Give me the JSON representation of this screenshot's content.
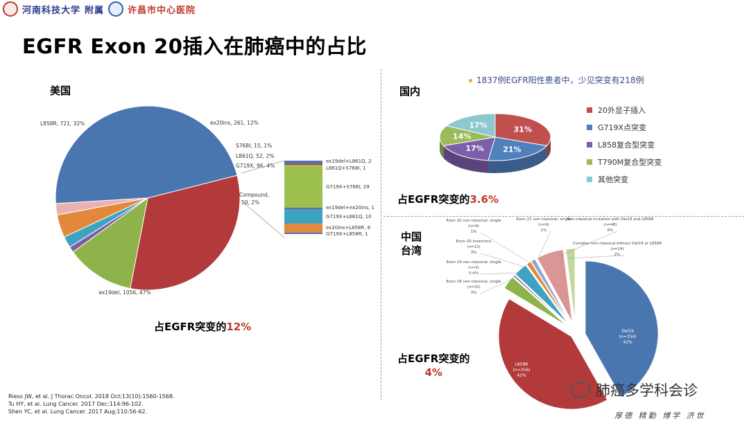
{
  "header": {
    "university": "河南科技大学",
    "affiliated": "附属",
    "hospital": "许昌市中心医院"
  },
  "title": "EGFR Exon 20插入在肺癌中的占比",
  "usa": {
    "label": "美国",
    "share_prefix": "占EGFR突变的",
    "share_value": "12%",
    "slices": [
      {
        "label": "ex19del, 1056, 47%",
        "value": 47,
        "color": "#4a76b0"
      },
      {
        "label": "L858R, 721, 32%",
        "value": 32,
        "color": "#b23a3a"
      },
      {
        "label": "ex20ins, 261, 12%",
        "value": 12,
        "color": "#8fb34b"
      },
      {
        "label": "S768I, 15, 1%",
        "value": 1,
        "color": "#7b5fa6"
      },
      {
        "label": "L861Q, 52, 2%",
        "value": 2,
        "color": "#3ea3c0"
      },
      {
        "label": "G719X, 96, 4%",
        "value": 4,
        "color": "#e3883a"
      },
      {
        "label": "Compound, 50, 2%",
        "value": 2,
        "color": "#e8b2b0"
      }
    ],
    "compound_breakdown": [
      {
        "label": "ex19del+L861Q, 2",
        "value": 2,
        "color": "#4a76b0"
      },
      {
        "label": "L861Q+S768I, 1",
        "value": 1,
        "color": "#b23a3a"
      },
      {
        "label": "G719X+S768I, 29",
        "value": 29,
        "color": "#9ec04f"
      },
      {
        "label": "ex19del+ex20ins, 1",
        "value": 1,
        "color": "#7b5fa6"
      },
      {
        "label": "G719X+L681Q, 10",
        "value": 10,
        "color": "#3ea3c0"
      },
      {
        "label": "ex20ins+L858R, 6",
        "value": 6,
        "color": "#e3883a"
      },
      {
        "label": "G719X+L858R, 1",
        "value": 1,
        "color": "#4a76b0"
      }
    ]
  },
  "china": {
    "label": "国内",
    "note": "1837例EGFR阳性患者中，少见突变有218例",
    "share_prefix": "占EGFR突变的",
    "share_value": "3.6%",
    "slices": [
      {
        "label": "20外显子插入",
        "value": 31,
        "pct": "31%",
        "color": "#c0504d"
      },
      {
        "label": "G719X点突变",
        "value": 21,
        "pct": "21%",
        "color": "#4f81bd"
      },
      {
        "label": "L858复合型突变",
        "value": 17,
        "pct": "17%",
        "color": "#7d5ea8"
      },
      {
        "label": "T790M复合型突变",
        "value": 14,
        "pct": "14%",
        "color": "#9bbb59"
      },
      {
        "label": "其他突变",
        "value": 17,
        "pct": "17%",
        "color": "#8cc8d0"
      }
    ]
  },
  "taiwan": {
    "label_line1": "中国",
    "label_line2": "台湾",
    "share_prefix": "占EGFR突变的",
    "share_value": "4%",
    "slices": [
      {
        "name": "Del19",
        "n": "(n=354)",
        "pct": "42%",
        "value": 42,
        "color": "#4a76b0"
      },
      {
        "name": "L858R",
        "n": "(n=356)",
        "pct": "42%",
        "value": 42,
        "color": "#b23a3a"
      },
      {
        "name": "Exon 18 non-classical, single",
        "n": "(n=25)",
        "pct": "3%",
        "value": 3,
        "color": "#8fb34b"
      },
      {
        "name": "Exon 19 non-classical, single",
        "n": "(n=3)",
        "pct": "0.4%",
        "value": 0.4,
        "color": "#7b5fa6"
      },
      {
        "name": "Exon 20 insertions",
        "n": "(n=22)",
        "pct": "3%",
        "value": 3,
        "color": "#3ea3c0"
      },
      {
        "name": "Exon 20 non-classical, single",
        "n": "(n=9)",
        "pct": "1%",
        "value": 1,
        "color": "#e3883a"
      },
      {
        "name": "Exon 21 non-classical, single",
        "n": "(n=9)",
        "pct": "1%",
        "value": 1,
        "color": "#8ca6d6"
      },
      {
        "name": "Non-classical mutation with Del19 and L858R",
        "n": "(n=48)",
        "pct": "6%",
        "value": 6,
        "color": "#d99694"
      },
      {
        "name": "Complex non-classical without Del19 or L858R",
        "n": "(n=14)",
        "pct": "2%",
        "value": 2,
        "color": "#c3d69b"
      }
    ]
  },
  "references": [
    "Riess JW, et al. J Thorac Oncol. 2018 Oct;13(10):1560-1568.",
    "Tu HY, et al. Lung Cancer. 2017 Dec;114:96-102.",
    "Shen YC, et al. Lung Cancer. 2017 Aug;110:56-62."
  ],
  "watermark": "肺癌多学科会诊",
  "motto": "厚德 精勤 博学 济世"
}
